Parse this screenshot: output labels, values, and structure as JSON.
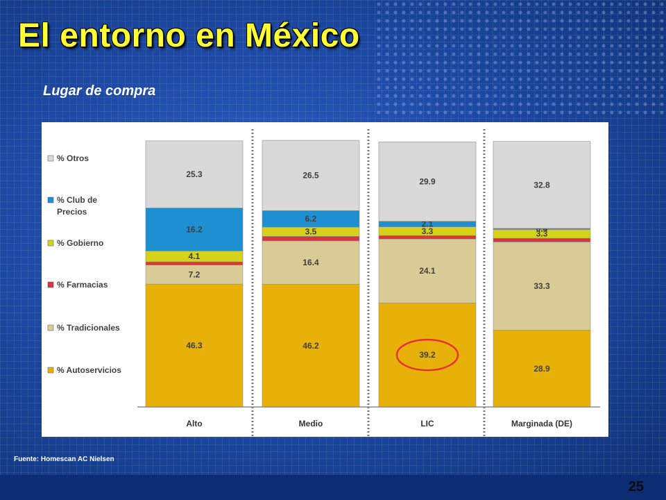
{
  "slide": {
    "title": "El entorno en México",
    "subtitle": "Lugar de compra",
    "source": "Fuente: Homescan AC Nielsen",
    "page_number": "25"
  },
  "chart_data": {
    "type": "bar",
    "stacked": true,
    "categories": [
      "Alto",
      "Medio",
      "LIC",
      "Marginada (DE)"
    ],
    "series": [
      {
        "name": "% Autoservicios",
        "values": [
          46.3,
          46.2,
          39.2,
          28.9
        ],
        "color": "#e8b10a"
      },
      {
        "name": "% Tradicionales",
        "values": [
          7.2,
          16.4,
          24.1,
          33.3
        ],
        "color": "#d8cb95"
      },
      {
        "name": "% Farmacias",
        "values": [
          1.2,
          1.7,
          1.3,
          1.4
        ],
        "color": "#d9353a"
      },
      {
        "name": "% Gobierno",
        "values": [
          4.1,
          3.5,
          3.3,
          3.3
        ],
        "color": "#d6d21c"
      },
      {
        "name": "% Club de Precios",
        "values": [
          16.2,
          6.2,
          2.1,
          0.4
        ],
        "color": "#1e8fd0"
      },
      {
        "name": "% Otros",
        "values": [
          25.3,
          26.5,
          29.9,
          32.8
        ],
        "color": "#d9d9d9"
      }
    ],
    "data_labels": [
      [
        "46.3",
        "46.2",
        "39.2",
        "28.9"
      ],
      [
        "7.2",
        "16.4",
        "24.1",
        "33.3"
      ],
      [
        "",
        "",
        "",
        ""
      ],
      [
        "4.1",
        "3.5",
        "3.3",
        "3.3"
      ],
      [
        "16.2",
        "6.2",
        "2.1",
        "0.4"
      ],
      [
        "25.3",
        "26.5",
        "29.9",
        "32.8"
      ]
    ],
    "legend_order": [
      "% Otros",
      "% Club de Precios",
      "% Gobierno",
      "% Farmacias",
      "% Tradicionales",
      "% Autoservicios"
    ],
    "legend_position": "left",
    "highlight": {
      "category": "LIC",
      "series": "% Autoservicios",
      "shape": "ellipse",
      "color": "#e8322f"
    },
    "ylim": [
      0,
      100
    ],
    "grid": false
  }
}
